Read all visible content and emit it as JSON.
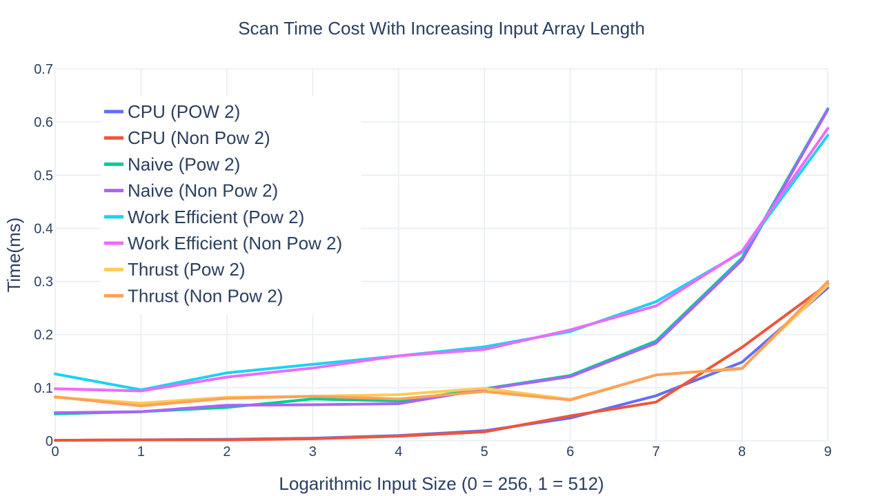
{
  "chart_data": {
    "type": "line",
    "title": "Scan Time Cost With Increasing Input Array Length",
    "xlabel": "Logarithmic Input Size (0 = 256, 1 = 512)",
    "ylabel": "Time(ms)",
    "xlim": [
      0,
      9
    ],
    "ylim": [
      0,
      0.7
    ],
    "x": [
      0,
      1,
      2,
      3,
      4,
      5,
      6,
      7,
      8,
      9
    ],
    "x_tick_labels": [
      "0",
      "1",
      "2",
      "3",
      "4",
      "5",
      "6",
      "7",
      "8",
      "9"
    ],
    "y_ticks": [
      0,
      0.1,
      0.2,
      0.3,
      0.4,
      0.5,
      0.6,
      0.7
    ],
    "y_tick_labels": [
      "0",
      "0.1",
      "0.2",
      "0.3",
      "0.4",
      "0.5",
      "0.6",
      "0.7"
    ],
    "grid": true,
    "legend_position": "top-left",
    "series": [
      {
        "name": "CPU (POW 2)",
        "color": "#636efa",
        "values": [
          0.001,
          0.002,
          0.003,
          0.005,
          0.01,
          0.019,
          0.043,
          0.085,
          0.148,
          0.288
        ]
      },
      {
        "name": "CPU (Non Pow 2)",
        "color": "#ef553b",
        "values": [
          0.001,
          0.002,
          0.002,
          0.004,
          0.009,
          0.017,
          0.047,
          0.073,
          0.176,
          0.295
        ]
      },
      {
        "name": "Naive (Pow 2)",
        "color": "#00cc96",
        "values": [
          0.051,
          0.055,
          0.063,
          0.079,
          0.075,
          0.098,
          0.123,
          0.188,
          0.344,
          0.625
        ]
      },
      {
        "name": "Naive (Non Pow 2)",
        "color": "#ab63fa",
        "values": [
          0.053,
          0.055,
          0.067,
          0.068,
          0.07,
          0.097,
          0.121,
          0.184,
          0.34,
          0.623
        ]
      },
      {
        "name": "Work Efficient (Pow 2)",
        "color": "#19d3f3",
        "values": [
          0.126,
          0.096,
          0.128,
          0.144,
          0.16,
          0.177,
          0.206,
          0.262,
          0.355,
          0.575
        ]
      },
      {
        "name": "Work Efficient (Non Pow 2)",
        "color": "#ee6afb",
        "values": [
          0.098,
          0.094,
          0.12,
          0.137,
          0.16,
          0.172,
          0.209,
          0.254,
          0.357,
          0.588
        ]
      },
      {
        "name": "Thrust (Pow 2)",
        "color": "#fecb52",
        "values": [
          0.082,
          0.071,
          0.082,
          0.084,
          0.087,
          0.099,
          0.078,
          0.124,
          0.137,
          0.293
        ]
      },
      {
        "name": "Thrust (Non Pow 2)",
        "color": "#ffa15a",
        "values": [
          0.083,
          0.066,
          0.08,
          0.084,
          0.079,
          0.093,
          0.077,
          0.124,
          0.136,
          0.3
        ]
      }
    ]
  }
}
